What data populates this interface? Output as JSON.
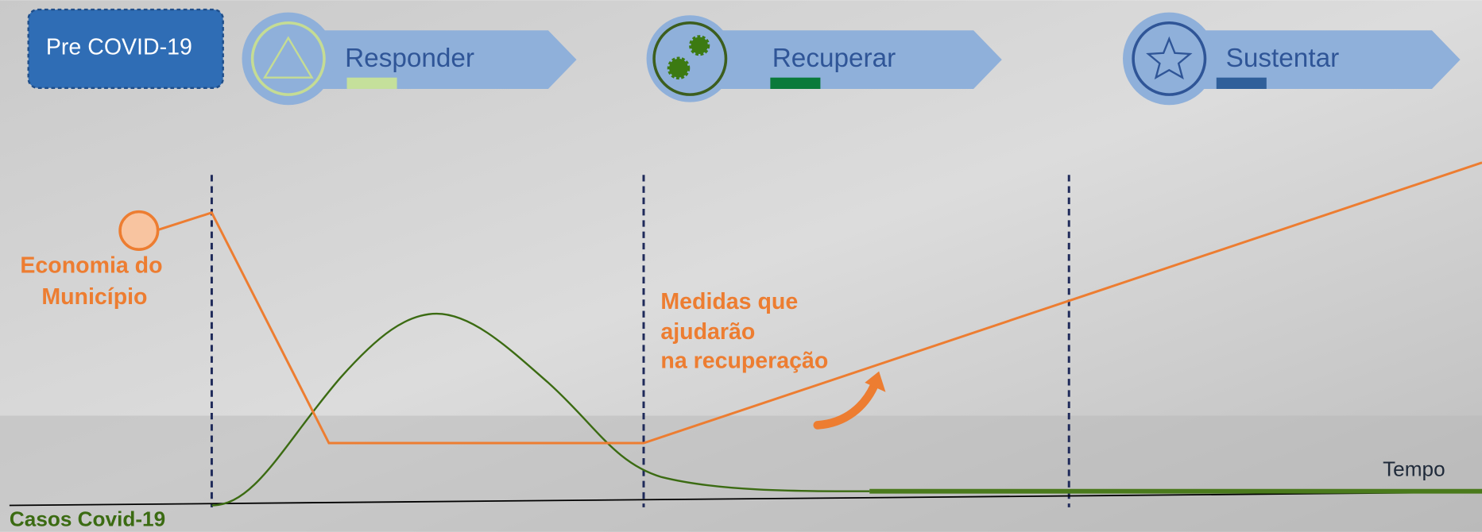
{
  "phases": [
    {
      "label": "Pre COVID-19"
    },
    {
      "label": "Responder"
    },
    {
      "label": "Recuperar"
    },
    {
      "label": "Sustentar"
    }
  ],
  "economy_label": [
    "Economia do",
    "Município"
  ],
  "measures_label": [
    "Medidas que",
    "ajudarão",
    "na recuperação"
  ],
  "time_label": "Tempo",
  "cases_label": "Casos Covid-19"
}
